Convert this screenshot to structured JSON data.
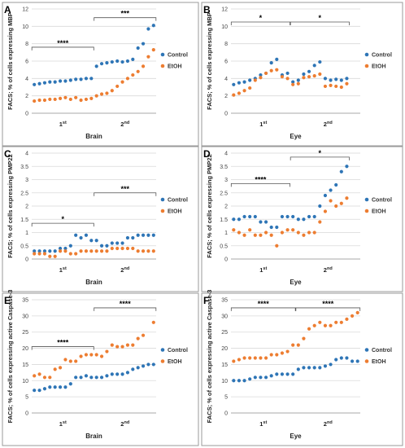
{
  "figure": {
    "width": 498,
    "height": 550
  },
  "chart_data": [
    {
      "id": "A",
      "type": "scatter",
      "letter": "A",
      "ylabel": "FACS; % of cells expressing MBP",
      "xlabel": "Brain",
      "ylim": [
        0,
        12
      ],
      "yticks": [
        0,
        2,
        4,
        6,
        8,
        10,
        12
      ],
      "grid": true,
      "x": [
        1,
        2,
        3,
        4,
        5,
        6,
        7,
        8,
        9,
        10,
        11,
        12,
        13,
        14,
        15,
        16,
        17,
        18,
        19,
        20,
        21,
        22,
        23,
        24
      ],
      "groups": [
        {
          "label": "1st",
          "text": "1",
          "sup": "st",
          "center": 6.5
        },
        {
          "label": "2nd",
          "text": "2",
          "sup": "nd",
          "center": 18.5
        }
      ],
      "series": [
        {
          "name": "Control",
          "color": "#2e75b6",
          "values": [
            3.3,
            3.4,
            3.5,
            3.6,
            3.6,
            3.7,
            3.7,
            3.8,
            3.9,
            3.9,
            4.0,
            4.0,
            5.4,
            5.7,
            5.8,
            5.9,
            6.0,
            5.9,
            6.0,
            6.2,
            7.5,
            8.0,
            9.7,
            10.1
          ]
        },
        {
          "name": "EtOH",
          "color": "#ed7d31",
          "values": [
            1.4,
            1.5,
            1.5,
            1.6,
            1.6,
            1.7,
            1.8,
            1.6,
            1.8,
            1.5,
            1.6,
            1.7,
            2.0,
            2.2,
            2.3,
            2.6,
            3.1,
            3.6,
            4.0,
            4.4,
            4.8,
            5.4,
            6.5,
            7.3
          ]
        }
      ],
      "annotations": [
        {
          "text": "****",
          "x1": 1,
          "x2": 12,
          "y": 7.6
        },
        {
          "text": "***",
          "x1": 13,
          "x2": 24,
          "y": 11.0
        }
      ],
      "legend_position": "right"
    },
    {
      "id": "B",
      "type": "scatter",
      "letter": "B",
      "ylabel": "FACS; % of cells expressing MBP",
      "xlabel": "Eye",
      "ylim": [
        0,
        12
      ],
      "yticks": [
        0,
        2,
        4,
        6,
        8,
        10,
        12
      ],
      "grid": true,
      "x": [
        1,
        2,
        3,
        4,
        5,
        6,
        7,
        8,
        9,
        10,
        11,
        12,
        13,
        14,
        15,
        16,
        17,
        18,
        19,
        20,
        21,
        22,
        23,
        24
      ],
      "groups": [
        {
          "label": "1st",
          "text": "1",
          "sup": "st",
          "center": 6.5
        },
        {
          "label": "2nd",
          "text": "2",
          "sup": "nd",
          "center": 18.5
        }
      ],
      "series": [
        {
          "name": "Control",
          "color": "#2e75b6",
          "values": [
            3.3,
            3.5,
            3.6,
            3.8,
            4.0,
            4.4,
            4.6,
            5.8,
            6.2,
            4.4,
            4.6,
            3.6,
            3.8,
            4.5,
            4.8,
            5.5,
            5.9,
            4.0,
            3.8,
            3.9,
            3.8,
            4.0,
            null,
            null
          ]
        },
        {
          "name": "EtOH",
          "color": "#ed7d31",
          "values": [
            2.1,
            2.3,
            2.6,
            2.9,
            3.8,
            4.1,
            4.6,
            4.9,
            5.0,
            4.2,
            4.0,
            3.3,
            3.4,
            4.1,
            4.2,
            4.3,
            4.5,
            3.1,
            3.2,
            3.1,
            3.0,
            3.4,
            null,
            null
          ]
        }
      ],
      "annotations": [
        {
          "text": "*",
          "x1": 1,
          "x2": 11,
          "y": 10.5
        },
        {
          "text": "*",
          "x1": 12,
          "x2": 22,
          "y": 10.5
        }
      ],
      "legend_position": "right"
    },
    {
      "id": "C",
      "type": "scatter",
      "letter": "C",
      "ylabel": "FACS; % of cells expressing PMP22",
      "xlabel": "Brain",
      "ylim": [
        0,
        4
      ],
      "yticks": [
        0,
        0.5,
        1,
        1.5,
        2,
        2.5,
        3,
        3.5,
        4
      ],
      "grid": true,
      "x": [
        1,
        2,
        3,
        4,
        5,
        6,
        7,
        8,
        9,
        10,
        11,
        12,
        13,
        14,
        15,
        16,
        17,
        18,
        19,
        20,
        21,
        22,
        23,
        24
      ],
      "groups": [
        {
          "label": "1st",
          "text": "1",
          "sup": "st",
          "center": 6.5
        },
        {
          "label": "2nd",
          "text": "2",
          "sup": "nd",
          "center": 18.5
        }
      ],
      "series": [
        {
          "name": "Control",
          "color": "#2e75b6",
          "values": [
            0.3,
            0.3,
            0.3,
            0.3,
            0.3,
            0.4,
            0.4,
            0.5,
            0.9,
            0.8,
            0.9,
            0.7,
            0.7,
            0.5,
            0.5,
            0.6,
            0.6,
            0.6,
            0.8,
            0.8,
            0.9,
            0.9,
            0.9,
            0.9
          ]
        },
        {
          "name": "EtOH",
          "color": "#ed7d31",
          "values": [
            0.2,
            0.2,
            0.2,
            0.1,
            0.1,
            0.3,
            0.3,
            0.2,
            0.2,
            0.3,
            0.3,
            0.3,
            0.3,
            0.3,
            0.3,
            0.4,
            0.4,
            0.4,
            0.4,
            0.4,
            0.3,
            0.3,
            0.3,
            0.3
          ]
        }
      ],
      "annotations": [
        {
          "text": "*",
          "x1": 1,
          "x2": 12,
          "y": 1.35
        },
        {
          "text": "***",
          "x1": 13,
          "x2": 24,
          "y": 2.5
        }
      ],
      "legend_position": "right"
    },
    {
      "id": "D",
      "type": "scatter",
      "letter": "D",
      "ylabel": "FACS; % of cells expressing PMP22",
      "xlabel": "Eye",
      "ylim": [
        0,
        4
      ],
      "yticks": [
        0,
        0.5,
        1,
        1.5,
        2,
        2.5,
        3,
        3.5,
        4
      ],
      "grid": true,
      "x": [
        1,
        2,
        3,
        4,
        5,
        6,
        7,
        8,
        9,
        10,
        11,
        12,
        13,
        14,
        15,
        16,
        17,
        18,
        19,
        20,
        21,
        22,
        23,
        24
      ],
      "groups": [
        {
          "label": "1st",
          "text": "1",
          "sup": "st",
          "center": 6.5
        },
        {
          "label": "2nd",
          "text": "2",
          "sup": "nd",
          "center": 18.5
        }
      ],
      "series": [
        {
          "name": "Control",
          "color": "#2e75b6",
          "values": [
            1.5,
            1.5,
            1.6,
            1.6,
            1.6,
            1.4,
            1.4,
            1.2,
            1.2,
            1.6,
            1.6,
            1.6,
            1.5,
            1.5,
            1.6,
            1.6,
            2.0,
            2.4,
            2.6,
            2.8,
            3.3,
            3.5,
            null,
            null
          ]
        },
        {
          "name": "EtOH",
          "color": "#ed7d31",
          "values": [
            1.1,
            1.0,
            0.9,
            1.1,
            0.9,
            0.9,
            1.0,
            0.9,
            0.5,
            1.0,
            1.1,
            1.1,
            1.0,
            0.9,
            1.0,
            1.0,
            1.4,
            1.8,
            2.2,
            2.0,
            2.1,
            2.3,
            null,
            null
          ]
        }
      ],
      "annotations": [
        {
          "text": "****",
          "x1": 1,
          "x2": 11,
          "y": 2.85
        },
        {
          "text": "*",
          "x1": 12,
          "x2": 22,
          "y": 3.85
        }
      ],
      "legend_position": "right"
    },
    {
      "id": "E",
      "type": "scatter",
      "letter": "E",
      "ylabel": "FACS; % of cells expressing active Caspase-3",
      "xlabel": "Brain",
      "ylim": [
        0,
        35
      ],
      "yticks": [
        0,
        5,
        10,
        15,
        20,
        25,
        30,
        35
      ],
      "grid": true,
      "x": [
        1,
        2,
        3,
        4,
        5,
        6,
        7,
        8,
        9,
        10,
        11,
        12,
        13,
        14,
        15,
        16,
        17,
        18,
        19,
        20,
        21,
        22,
        23,
        24
      ],
      "groups": [
        {
          "label": "1st",
          "text": "1",
          "sup": "st",
          "center": 6.5
        },
        {
          "label": "2nd",
          "text": "2",
          "sup": "nd",
          "center": 18.5
        }
      ],
      "series": [
        {
          "name": "Control",
          "color": "#2e75b6",
          "values": [
            7,
            7,
            7.5,
            8,
            8,
            8,
            8,
            9,
            11,
            11,
            11.5,
            11,
            11,
            11,
            11.5,
            12,
            12,
            12,
            12.5,
            13.5,
            14,
            14.5,
            15,
            15
          ]
        },
        {
          "name": "EtOH",
          "color": "#ed7d31",
          "values": [
            11.5,
            12,
            11,
            11,
            13.5,
            14,
            16.5,
            16,
            16,
            17.5,
            18,
            18,
            18,
            17.5,
            19,
            21,
            20.5,
            20.5,
            21,
            21,
            23,
            24,
            null,
            28
          ]
        }
      ],
      "annotations": [
        {
          "text": "****",
          "x1": 1,
          "x2": 12,
          "y": 20.5
        },
        {
          "text": "****",
          "x1": 13,
          "x2": 24,
          "y": 32.5
        }
      ],
      "legend_position": "right"
    },
    {
      "id": "F",
      "type": "scatter",
      "letter": "F",
      "ylabel": "FACS; % of cells expressing active Caspase-3",
      "xlabel": "Eye",
      "ylim": [
        0,
        35
      ],
      "yticks": [
        0,
        5,
        10,
        15,
        20,
        25,
        30,
        35
      ],
      "grid": true,
      "x": [
        1,
        2,
        3,
        4,
        5,
        6,
        7,
        8,
        9,
        10,
        11,
        12,
        13,
        14,
        15,
        16,
        17,
        18,
        19,
        20,
        21,
        22,
        23,
        24
      ],
      "groups": [
        {
          "label": "1st",
          "text": "1",
          "sup": "st",
          "center": 6.5
        },
        {
          "label": "2nd",
          "text": "2",
          "sup": "nd",
          "center": 18.5
        }
      ],
      "series": [
        {
          "name": "Control",
          "color": "#2e75b6",
          "values": [
            10,
            10,
            10,
            10.5,
            11,
            11,
            11,
            11.5,
            12,
            12,
            12,
            12,
            13.5,
            14,
            14,
            14,
            14,
            14.5,
            15,
            16.5,
            17,
            17,
            16,
            16
          ]
        },
        {
          "name": "EtOH",
          "color": "#ed7d31",
          "values": [
            16,
            16.5,
            17,
            17,
            17,
            17,
            17,
            18,
            18,
            18.5,
            19,
            21,
            21,
            23,
            26,
            27,
            28,
            27,
            27,
            28,
            28,
            29,
            30,
            31
          ]
        }
      ],
      "annotations": [
        {
          "text": "****",
          "x1": 1,
          "x2": 12,
          "y": 32.5
        },
        {
          "text": "****",
          "x1": 13,
          "x2": 24,
          "y": 32.5
        }
      ],
      "legend_position": "right"
    }
  ]
}
